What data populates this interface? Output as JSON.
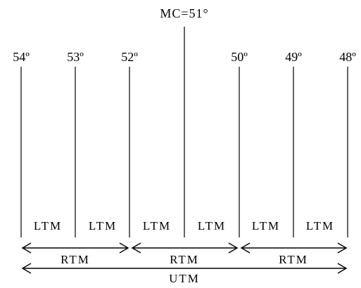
{
  "central_meridian_label": "MC=51°",
  "meridians": [
    {
      "id": "m54",
      "label": "54º"
    },
    {
      "id": "m53",
      "label": "53º"
    },
    {
      "id": "m52",
      "label": "52º"
    },
    {
      "id": "m51",
      "label": ""
    },
    {
      "id": "m50",
      "label": "50º"
    },
    {
      "id": "m49",
      "label": "49º"
    },
    {
      "id": "m48",
      "label": "48º"
    }
  ],
  "ltm_labels": [
    "LTM",
    "LTM",
    "LTM",
    "LTM",
    "LTM",
    "LTM"
  ],
  "rtm_labels": [
    "RTM",
    "RTM",
    "RTM"
  ],
  "utm_label": "UTM"
}
